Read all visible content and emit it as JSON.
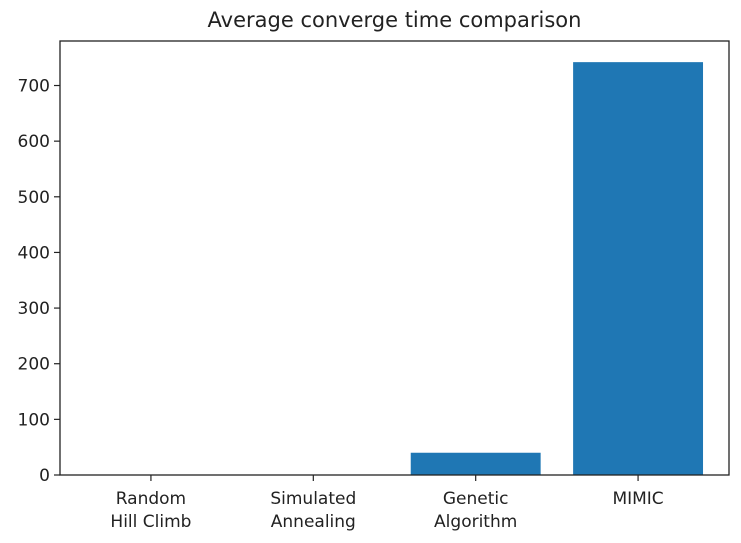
{
  "chart_data": {
    "type": "bar",
    "title": "Average converge time comparison",
    "xlabel": "",
    "ylabel": "",
    "categories": [
      [
        "Random",
        "Hill Climb"
      ],
      [
        "Simulated",
        "Annealing"
      ],
      [
        "Genetic",
        "Algorithm"
      ],
      [
        "MIMIC"
      ]
    ],
    "values": [
      0.5,
      0.5,
      40,
      742
    ],
    "ylim": [
      0,
      780
    ],
    "yticks": [
      0,
      100,
      200,
      300,
      400,
      500,
      600,
      700
    ],
    "grid": false,
    "legend": "none",
    "colors": {
      "bar": "#1f77b4",
      "axis": "#222222"
    }
  }
}
